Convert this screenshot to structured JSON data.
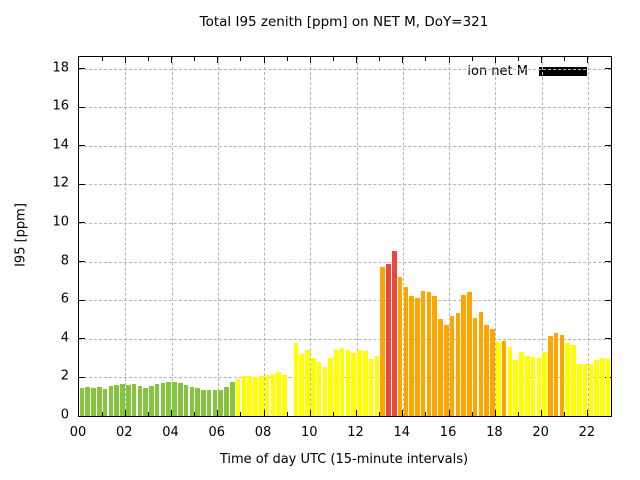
{
  "title": "Total I95 zenith [ppm] on NET M, DoY=321",
  "legend": {
    "label": "ion net M",
    "swatch_color": "#000000"
  },
  "chart_data": {
    "type": "bar",
    "title": "Total I95 zenith [ppm] on NET M, DoY=321",
    "xlabel": "Time of day UTC (15-minute intervals)",
    "ylabel": "I95 [ppm]",
    "series_name": "ion net M",
    "interval_minutes": 15,
    "ylim": [
      0,
      18.6
    ],
    "xlim_hours": [
      0,
      23
    ],
    "y_ticks": [
      "0",
      "2",
      "4",
      "6",
      "8",
      "10",
      "12",
      "14",
      "16",
      "18"
    ],
    "x_ticks": [
      "00",
      "02",
      "04",
      "06",
      "08",
      "10",
      "12",
      "14",
      "16",
      "18",
      "20",
      "22"
    ],
    "grid": true,
    "legend_position": "top-right",
    "colors": {
      "green": "#86C440",
      "yellow": "#FFFF00",
      "orange": "#FFA500",
      "red": "#E9493D"
    },
    "points": [
      {
        "time": "00:00",
        "value": 1.45,
        "color": "green"
      },
      {
        "time": "00:15",
        "value": 1.5,
        "color": "green"
      },
      {
        "time": "00:30",
        "value": 1.45,
        "color": "green"
      },
      {
        "time": "00:45",
        "value": 1.5,
        "color": "green"
      },
      {
        "time": "01:00",
        "value": 1.4,
        "color": "green"
      },
      {
        "time": "01:15",
        "value": 1.55,
        "color": "green"
      },
      {
        "time": "01:30",
        "value": 1.6,
        "color": "green"
      },
      {
        "time": "01:45",
        "value": 1.65,
        "color": "green"
      },
      {
        "time": "02:00",
        "value": 1.6,
        "color": "green"
      },
      {
        "time": "02:15",
        "value": 1.65,
        "color": "green"
      },
      {
        "time": "02:30",
        "value": 1.55,
        "color": "green"
      },
      {
        "time": "02:45",
        "value": 1.45,
        "color": "green"
      },
      {
        "time": "03:00",
        "value": 1.55,
        "color": "green"
      },
      {
        "time": "03:15",
        "value": 1.65,
        "color": "green"
      },
      {
        "time": "03:30",
        "value": 1.7,
        "color": "green"
      },
      {
        "time": "03:45",
        "value": 1.75,
        "color": "green"
      },
      {
        "time": "04:00",
        "value": 1.75,
        "color": "green"
      },
      {
        "time": "04:15",
        "value": 1.7,
        "color": "green"
      },
      {
        "time": "04:30",
        "value": 1.6,
        "color": "green"
      },
      {
        "time": "04:45",
        "value": 1.5,
        "color": "green"
      },
      {
        "time": "05:00",
        "value": 1.45,
        "color": "green"
      },
      {
        "time": "05:15",
        "value": 1.35,
        "color": "green"
      },
      {
        "time": "05:30",
        "value": 1.35,
        "color": "green"
      },
      {
        "time": "05:45",
        "value": 1.35,
        "color": "green"
      },
      {
        "time": "06:00",
        "value": 1.35,
        "color": "green"
      },
      {
        "time": "06:15",
        "value": 1.5,
        "color": "green"
      },
      {
        "time": "06:30",
        "value": 1.75,
        "color": "green"
      },
      {
        "time": "06:45",
        "value": 1.9,
        "color": "yellow"
      },
      {
        "time": "07:00",
        "value": 2.05,
        "color": "yellow"
      },
      {
        "time": "07:15",
        "value": 2.05,
        "color": "yellow"
      },
      {
        "time": "07:30",
        "value": 2.0,
        "color": "yellow"
      },
      {
        "time": "07:45",
        "value": 2.05,
        "color": "yellow"
      },
      {
        "time": "08:00",
        "value": 2.1,
        "color": "yellow"
      },
      {
        "time": "08:15",
        "value": 2.2,
        "color": "yellow"
      },
      {
        "time": "08:30",
        "value": 2.3,
        "color": "yellow"
      },
      {
        "time": "08:45",
        "value": 2.1,
        "color": "yellow"
      },
      {
        "time": "09:00",
        "value": 0,
        "color": "yellow"
      },
      {
        "time": "09:15",
        "value": 3.8,
        "color": "yellow"
      },
      {
        "time": "09:30",
        "value": 3.2,
        "color": "yellow"
      },
      {
        "time": "09:45",
        "value": 3.4,
        "color": "yellow"
      },
      {
        "time": "10:00",
        "value": 3.0,
        "color": "yellow"
      },
      {
        "time": "10:15",
        "value": 2.8,
        "color": "yellow"
      },
      {
        "time": "10:30",
        "value": 2.55,
        "color": "yellow"
      },
      {
        "time": "10:45",
        "value": 3.0,
        "color": "yellow"
      },
      {
        "time": "11:00",
        "value": 3.4,
        "color": "yellow"
      },
      {
        "time": "11:15",
        "value": 3.5,
        "color": "yellow"
      },
      {
        "time": "11:30",
        "value": 3.4,
        "color": "yellow"
      },
      {
        "time": "11:45",
        "value": 3.25,
        "color": "yellow"
      },
      {
        "time": "12:00",
        "value": 3.4,
        "color": "yellow"
      },
      {
        "time": "12:15",
        "value": 3.35,
        "color": "yellow"
      },
      {
        "time": "12:30",
        "value": 2.95,
        "color": "yellow"
      },
      {
        "time": "12:45",
        "value": 3.1,
        "color": "yellow"
      },
      {
        "time": "13:00",
        "value": 7.7,
        "color": "orange"
      },
      {
        "time": "13:15",
        "value": 7.9,
        "color": "red"
      },
      {
        "time": "13:30",
        "value": 8.55,
        "color": "red"
      },
      {
        "time": "13:45",
        "value": 7.2,
        "color": "orange"
      },
      {
        "time": "14:00",
        "value": 6.7,
        "color": "orange"
      },
      {
        "time": "14:15",
        "value": 6.2,
        "color": "orange"
      },
      {
        "time": "14:30",
        "value": 6.1,
        "color": "orange"
      },
      {
        "time": "14:45",
        "value": 6.5,
        "color": "orange"
      },
      {
        "time": "15:00",
        "value": 6.45,
        "color": "orange"
      },
      {
        "time": "15:15",
        "value": 6.2,
        "color": "orange"
      },
      {
        "time": "15:30",
        "value": 5.05,
        "color": "orange"
      },
      {
        "time": "15:45",
        "value": 4.7,
        "color": "orange"
      },
      {
        "time": "16:00",
        "value": 5.2,
        "color": "orange"
      },
      {
        "time": "16:15",
        "value": 5.35,
        "color": "orange"
      },
      {
        "time": "16:30",
        "value": 6.25,
        "color": "orange"
      },
      {
        "time": "16:45",
        "value": 6.4,
        "color": "orange"
      },
      {
        "time": "17:00",
        "value": 5.1,
        "color": "orange"
      },
      {
        "time": "17:15",
        "value": 5.4,
        "color": "orange"
      },
      {
        "time": "17:30",
        "value": 4.7,
        "color": "orange"
      },
      {
        "time": "17:45",
        "value": 4.5,
        "color": "orange"
      },
      {
        "time": "18:00",
        "value": 3.85,
        "color": "yellow"
      },
      {
        "time": "18:15",
        "value": 3.9,
        "color": "orange"
      },
      {
        "time": "18:30",
        "value": 3.55,
        "color": "yellow"
      },
      {
        "time": "18:45",
        "value": 2.9,
        "color": "yellow"
      },
      {
        "time": "19:00",
        "value": 3.3,
        "color": "yellow"
      },
      {
        "time": "19:15",
        "value": 3.1,
        "color": "yellow"
      },
      {
        "time": "19:30",
        "value": 3.05,
        "color": "yellow"
      },
      {
        "time": "19:45",
        "value": 3.0,
        "color": "yellow"
      },
      {
        "time": "20:00",
        "value": 3.3,
        "color": "yellow"
      },
      {
        "time": "20:15",
        "value": 4.15,
        "color": "orange"
      },
      {
        "time": "20:30",
        "value": 4.3,
        "color": "orange"
      },
      {
        "time": "20:45",
        "value": 4.2,
        "color": "orange"
      },
      {
        "time": "21:00",
        "value": 3.8,
        "color": "yellow"
      },
      {
        "time": "21:15",
        "value": 3.7,
        "color": "yellow"
      },
      {
        "time": "21:30",
        "value": 2.7,
        "color": "yellow"
      },
      {
        "time": "21:45",
        "value": 2.7,
        "color": "yellow"
      },
      {
        "time": "22:00",
        "value": 2.7,
        "color": "yellow"
      },
      {
        "time": "22:15",
        "value": 2.9,
        "color": "yellow"
      },
      {
        "time": "22:30",
        "value": 3.0,
        "color": "yellow"
      },
      {
        "time": "22:45",
        "value": 2.95,
        "color": "yellow"
      }
    ]
  }
}
